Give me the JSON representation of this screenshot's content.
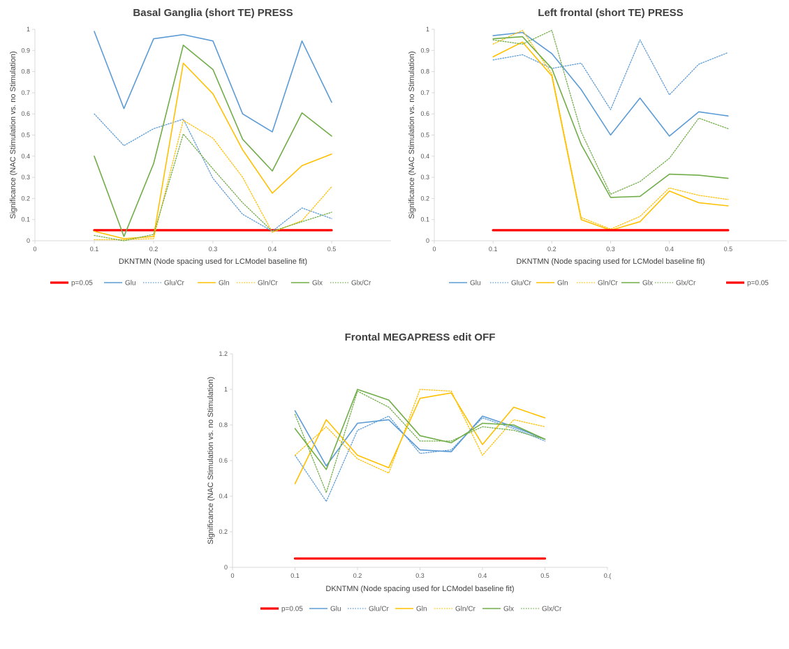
{
  "chart_data": [
    {
      "type": "line",
      "title": "Basal Ganglia (short TE) PRESS",
      "xlabel": "DKNTMN (Node spacing used for LCModel baseline fit)",
      "ylabel": "Significance (NAC Stimulation vs. no Stimulation)",
      "xlim": [
        0,
        0.6
      ],
      "ylim": [
        0,
        1
      ],
      "xticks": [
        0,
        0.1,
        0.2,
        0.3,
        0.4,
        0.5
      ],
      "xtick_labels": [
        "0",
        "0.1",
        "0.2",
        "0.3",
        "0.4",
        "0.5"
      ],
      "yticks": [
        0,
        0.1,
        0.2,
        0.3,
        0.4,
        0.5,
        0.6,
        0.7,
        0.8,
        0.9,
        1
      ],
      "ytick_labels": [
        "0",
        "0.1",
        "0.2",
        "0.3",
        "0.4",
        "0.5",
        "0.6",
        "0.7",
        "0.8",
        "0.9",
        "1"
      ],
      "x": [
        0.1,
        0.15,
        0.2,
        0.25,
        0.3,
        0.35,
        0.4,
        0.45,
        0.5
      ],
      "series": [
        {
          "name": "p=0.05",
          "color": "#ff0000",
          "style": "threshold",
          "values": [
            0.05,
            0.05,
            0.05,
            0.05,
            0.05,
            0.05,
            0.05,
            0.05,
            0.05
          ]
        },
        {
          "name": "Glu",
          "color": "#5b9bd5",
          "style": "solid",
          "values": [
            0.99,
            0.625,
            0.955,
            0.975,
            0.945,
            0.6,
            0.515,
            0.945,
            0.655
          ]
        },
        {
          "name": "Glu/Cr",
          "color": "#5b9bd5",
          "style": "dotted",
          "values": [
            0.6,
            0.45,
            0.53,
            0.575,
            0.295,
            0.125,
            0.045,
            0.155,
            0.105
          ]
        },
        {
          "name": "Gln",
          "color": "#ffc000",
          "style": "solid",
          "values": [
            0.045,
            0.01,
            0.02,
            0.84,
            0.695,
            0.43,
            0.225,
            0.355,
            0.41
          ]
        },
        {
          "name": "Gln/Cr",
          "color": "#ffc000",
          "style": "dotted",
          "values": [
            0.005,
            0.005,
            0.01,
            0.57,
            0.485,
            0.3,
            0.04,
            0.095,
            0.255
          ]
        },
        {
          "name": "Glx",
          "color": "#70ad47",
          "style": "solid",
          "values": [
            0.4,
            0.02,
            0.365,
            0.925,
            0.81,
            0.48,
            0.33,
            0.605,
            0.495
          ]
        },
        {
          "name": "Glx/Cr",
          "color": "#70ad47",
          "style": "dotted",
          "values": [
            0.025,
            0.0,
            0.03,
            0.505,
            0.34,
            0.18,
            0.045,
            0.09,
            0.135
          ]
        }
      ],
      "legend": [
        "p=0.05",
        "Glu",
        "Glu/Cr",
        "Gln",
        "Gln/Cr",
        "Glx",
        "Glx/Cr"
      ]
    },
    {
      "type": "line",
      "title": "Left frontal (short TE) PRESS",
      "xlabel": "DKNTMN (Node spacing used for LCModel baseline fit)",
      "ylabel": "Significance (NAC Stimulation vs. no Stimulation)",
      "xlim": [
        0,
        0.6
      ],
      "ylim": [
        0,
        1
      ],
      "xticks": [
        0,
        0.1,
        0.2,
        0.3,
        0.4,
        0.5
      ],
      "xtick_labels": [
        "0",
        "0.1",
        "0.2",
        "0.3",
        "0.4",
        "0.5"
      ],
      "yticks": [
        0,
        0.1,
        0.2,
        0.3,
        0.4,
        0.5,
        0.6,
        0.7,
        0.8,
        0.9,
        1
      ],
      "ytick_labels": [
        "0",
        "0.1",
        "0.2",
        "0.3",
        "0.4",
        "0.5",
        "0.6",
        "0.7",
        "0.8",
        "0.9",
        "1"
      ],
      "x": [
        0.1,
        0.15,
        0.2,
        0.25,
        0.3,
        0.35,
        0.4,
        0.45,
        0.5
      ],
      "series": [
        {
          "name": "Glu",
          "color": "#5b9bd5",
          "style": "solid",
          "values": [
            0.97,
            0.985,
            0.885,
            0.715,
            0.5,
            0.675,
            0.495,
            0.61,
            0.59
          ]
        },
        {
          "name": "Glu/Cr",
          "color": "#5b9bd5",
          "style": "dotted",
          "values": [
            0.855,
            0.88,
            0.815,
            0.84,
            0.62,
            0.95,
            0.69,
            0.835,
            0.89
          ]
        },
        {
          "name": "Gln",
          "color": "#ffc000",
          "style": "solid",
          "values": [
            0.87,
            0.94,
            0.78,
            0.1,
            0.05,
            0.09,
            0.235,
            0.18,
            0.165
          ]
        },
        {
          "name": "Gln/Cr",
          "color": "#ffc000",
          "style": "dotted",
          "values": [
            0.93,
            0.995,
            0.79,
            0.11,
            0.055,
            0.115,
            0.25,
            0.215,
            0.195
          ]
        },
        {
          "name": "Glx",
          "color": "#70ad47",
          "style": "solid",
          "values": [
            0.955,
            0.965,
            0.815,
            0.455,
            0.205,
            0.21,
            0.315,
            0.31,
            0.295
          ]
        },
        {
          "name": "Glx/Cr",
          "color": "#70ad47",
          "style": "dotted",
          "values": [
            0.95,
            0.93,
            0.995,
            0.515,
            0.22,
            0.28,
            0.39,
            0.58,
            0.53
          ]
        },
        {
          "name": "p=0.05",
          "color": "#ff0000",
          "style": "threshold",
          "values": [
            0.05,
            0.05,
            0.05,
            0.05,
            0.05,
            0.05,
            0.05,
            0.05,
            0.05
          ]
        }
      ],
      "legend": [
        "Glu",
        "Glu/Cr",
        "Gln",
        "Gln/Cr",
        "Glx",
        "Glx/Cr",
        "p=0.05"
      ]
    },
    {
      "type": "line",
      "title": "Frontal MEGAPRESS edit OFF",
      "xlabel": "DKNTMN (Node spacing used for LCModel baseline fit)",
      "ylabel": "Significance (NAC Stimulation vs. no Stimulation)",
      "xlim": [
        0,
        0.6
      ],
      "ylim": [
        0,
        1.2
      ],
      "xticks": [
        0,
        0.1,
        0.2,
        0.3,
        0.4,
        0.5,
        0.6
      ],
      "xtick_labels": [
        "0",
        "0.1",
        "0.2",
        "0.3",
        "0.4",
        "0.5",
        "0.("
      ],
      "yticks": [
        0,
        0.2,
        0.4,
        0.6,
        0.8,
        1,
        1.2
      ],
      "ytick_labels": [
        "0",
        "0.2",
        "0.4",
        "0.6",
        "0.8",
        "1",
        "1.2"
      ],
      "x": [
        0.1,
        0.15,
        0.2,
        0.25,
        0.3,
        0.35,
        0.4,
        0.45,
        0.5
      ],
      "series": [
        {
          "name": "p=0.05",
          "color": "#ff0000",
          "style": "threshold",
          "values": [
            0.05,
            0.05,
            0.05,
            0.05,
            0.05,
            0.05,
            0.05,
            0.05,
            0.05
          ]
        },
        {
          "name": "Glu",
          "color": "#5b9bd5",
          "style": "solid",
          "values": [
            0.88,
            0.57,
            0.81,
            0.83,
            0.66,
            0.65,
            0.85,
            0.79,
            0.72
          ]
        },
        {
          "name": "Glu/Cr",
          "color": "#5b9bd5",
          "style": "dotted",
          "values": [
            0.63,
            0.37,
            0.77,
            0.85,
            0.64,
            0.66,
            0.84,
            0.78,
            0.71
          ]
        },
        {
          "name": "Gln",
          "color": "#ffc000",
          "style": "solid",
          "values": [
            0.47,
            0.83,
            0.63,
            0.56,
            0.95,
            0.98,
            0.69,
            0.9,
            0.84
          ]
        },
        {
          "name": "Gln/Cr",
          "color": "#ffc000",
          "style": "dotted",
          "values": [
            0.63,
            0.79,
            0.61,
            0.53,
            1.0,
            0.99,
            0.63,
            0.83,
            0.79
          ]
        },
        {
          "name": "Glx",
          "color": "#70ad47",
          "style": "solid",
          "values": [
            0.78,
            0.55,
            1.0,
            0.94,
            0.74,
            0.7,
            0.81,
            0.8,
            0.72
          ]
        },
        {
          "name": "Glx/Cr",
          "color": "#70ad47",
          "style": "dotted",
          "values": [
            0.86,
            0.42,
            0.99,
            0.9,
            0.71,
            0.71,
            0.79,
            0.77,
            0.72
          ]
        }
      ],
      "legend": [
        "p=0.05",
        "Glu",
        "Glu/Cr",
        "Gln",
        "Gln/Cr",
        "Glx",
        "Glx/Cr"
      ]
    }
  ]
}
